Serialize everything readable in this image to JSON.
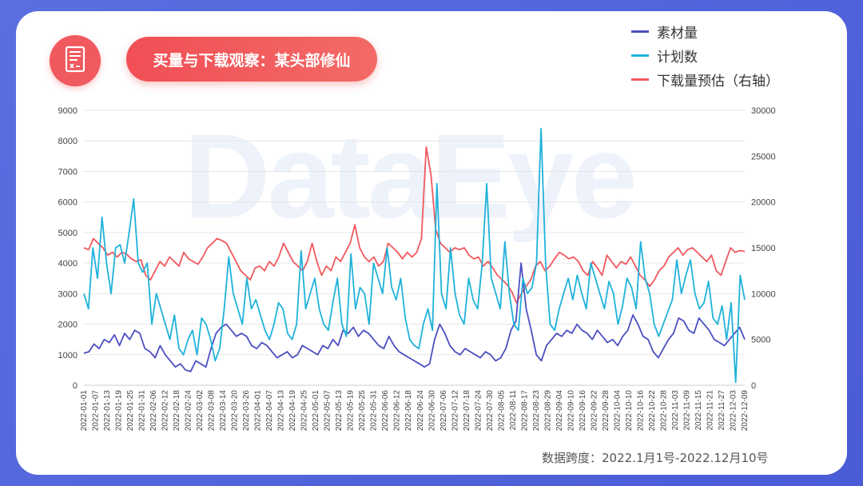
{
  "header": {
    "title": "买量与下载观察：某头部修仙"
  },
  "watermark": "DataEye",
  "footnote": "数据跨度：2022.1月1号-2022.12月10号",
  "colors": {
    "materials": "#4b4fc0",
    "plans": "#1fb2da",
    "downloads": "#f0595e",
    "background": "#5568e0",
    "title_pill": "#f0595e"
  },
  "icons": {
    "logo": "document-icon"
  },
  "chart_data": {
    "type": "line",
    "grid": true,
    "legend_position": "top-right",
    "x_tick_labels": [
      "2022-01-01",
      "2022-01-07",
      "2022-01-13",
      "2022-01-19",
      "2022-01-25",
      "2022-01-31",
      "2022-02-06",
      "2022-02-12",
      "2022-02-18",
      "2022-02-24",
      "2022-03-02",
      "2022-03-08",
      "2022-03-14",
      "2022-03-20",
      "2022-03-26",
      "2022-04-01",
      "2022-04-07",
      "2022-04-13",
      "2022-04-19",
      "2022-04-25",
      "2022-05-01",
      "2022-05-07",
      "2022-05-13",
      "2022-05-19",
      "2022-05-25",
      "2022-05-31",
      "2022-06-06",
      "2022-06-12",
      "2022-06-18",
      "2022-06-24",
      "2022-06-30",
      "2022-07-06",
      "2022-07-12",
      "2022-07-18",
      "2022-07-24",
      "2022-07-30",
      "2022-08-05",
      "2022-08-11",
      "2022-08-17",
      "2022-08-23",
      "2022-08-29",
      "2022-09-04",
      "2022-09-10",
      "2022-09-16",
      "2022-09-22",
      "2022-09-28",
      "2022-10-04",
      "2022-10-10",
      "2022-10-16",
      "2022-10-22",
      "2022-10-28",
      "2022-11-03",
      "2022-11-09",
      "2022-11-15",
      "2022-11-21",
      "2022-11-27",
      "2022-12-03",
      "2022-12-09"
    ],
    "y_left": {
      "ticks": [
        0,
        1000,
        2000,
        3000,
        4000,
        5000,
        6000,
        7000,
        8000,
        9000
      ],
      "range": [
        0,
        9000
      ]
    },
    "y_right": {
      "ticks": [
        0,
        5000,
        10000,
        15000,
        20000,
        25000,
        30000
      ],
      "range": [
        0,
        30000
      ]
    },
    "series": [
      {
        "name": "素材量",
        "axis": "left",
        "color": "#4b4fc0",
        "values": [
          1050,
          1100,
          1350,
          1200,
          1500,
          1400,
          1650,
          1300,
          1700,
          1500,
          1800,
          1700,
          1200,
          1100,
          900,
          1300,
          1000,
          800,
          600,
          700,
          500,
          450,
          800,
          700,
          600,
          1200,
          1700,
          1900,
          2000,
          1800,
          1600,
          1700,
          1600,
          1300,
          1200,
          1400,
          1300,
          1100,
          900,
          1000,
          1100,
          900,
          1000,
          1300,
          1200,
          1100,
          1000,
          1300,
          1200,
          1500,
          1300,
          1800,
          1700,
          1900,
          1600,
          1800,
          1700,
          1500,
          1300,
          1200,
          1600,
          1300,
          1100,
          1000,
          900,
          800,
          700,
          600,
          700,
          1500,
          2000,
          1700,
          1300,
          1100,
          1000,
          1200,
          1100,
          1000,
          900,
          1100,
          1000,
          800,
          900,
          1200,
          1800,
          2100,
          4000,
          2500,
          1800,
          1000,
          800,
          1300,
          1500,
          1700,
          1600,
          1800,
          1700,
          2000,
          1800,
          1700,
          1500,
          1800,
          1600,
          1400,
          1500,
          1300,
          1600,
          1800,
          2300,
          2000,
          1600,
          1500,
          1100,
          900,
          1200,
          1500,
          1700,
          2200,
          2100,
          1800,
          1700,
          2200,
          2000,
          1800,
          1500,
          1400,
          1300,
          1500,
          1700,
          1900,
          1500
        ]
      },
      {
        "name": "计划数",
        "axis": "left",
        "color": "#1fb2da",
        "values": [
          3000,
          2500,
          4500,
          3500,
          5500,
          4000,
          3000,
          4500,
          4600,
          4000,
          5000,
          6100,
          4000,
          3700,
          4000,
          2000,
          3000,
          2500,
          2000,
          1500,
          2300,
          1200,
          1000,
          1500,
          1800,
          1000,
          2200,
          2000,
          1500,
          800,
          1200,
          2500,
          4200,
          3000,
          2500,
          2000,
          3500,
          2500,
          2800,
          2300,
          1800,
          1500,
          2000,
          2700,
          2500,
          1700,
          1500,
          2000,
          4400,
          2500,
          3000,
          3500,
          2500,
          2000,
          1800,
          2700,
          3500,
          2000,
          1600,
          4300,
          2500,
          3200,
          3000,
          2000,
          4000,
          3500,
          3000,
          4500,
          3200,
          2800,
          3500,
          2200,
          1500,
          1300,
          1200,
          2000,
          2500,
          1800,
          6600,
          3000,
          2500,
          4500,
          3000,
          2300,
          2000,
          3500,
          2800,
          2500,
          4000,
          6600,
          3500,
          3000,
          2500,
          4700,
          3000,
          2000,
          1800,
          3500,
          3000,
          3200,
          4000,
          8400,
          4000,
          2000,
          1800,
          2500,
          3000,
          3500,
          2800,
          3600,
          3000,
          2500,
          4000,
          3500,
          3000,
          2500,
          3400,
          3000,
          2000,
          2600,
          3500,
          3200,
          2500,
          4700,
          3500,
          3000,
          2000,
          1600,
          2000,
          2400,
          2800,
          4100,
          3000,
          3600,
          4100,
          3000,
          2500,
          2700,
          3400,
          2200,
          2000,
          2600,
          1500,
          2700,
          100,
          3600,
          2800
        ]
      },
      {
        "name": "下载量预估（右轴）",
        "axis": "right",
        "color": "#f0595e",
        "values": [
          15000,
          14800,
          16000,
          15500,
          15000,
          14200,
          14500,
          14000,
          14500,
          14300,
          13800,
          13500,
          13700,
          12000,
          11500,
          12500,
          13500,
          13000,
          14000,
          13500,
          13000,
          14500,
          13800,
          13500,
          13200,
          14000,
          15000,
          15500,
          16000,
          15800,
          15500,
          14500,
          13500,
          12500,
          12000,
          11500,
          12800,
          13000,
          12500,
          13500,
          13000,
          14000,
          15500,
          14500,
          13500,
          13000,
          12500,
          13500,
          15500,
          13500,
          12000,
          13000,
          12500,
          14000,
          13500,
          14500,
          15500,
          17500,
          15000,
          14000,
          13500,
          14000,
          13000,
          13500,
          15500,
          15000,
          14500,
          13800,
          14500,
          14000,
          14500,
          16000,
          26000,
          23000,
          17000,
          15500,
          15000,
          14500,
          15000,
          14800,
          15000,
          14200,
          13800,
          14000,
          13000,
          13500,
          12800,
          12000,
          11500,
          11000,
          10200,
          9000,
          10000,
          10800,
          11500,
          13000,
          13500,
          12500,
          13000,
          13800,
          14500,
          14200,
          13800,
          14000,
          13500,
          12500,
          12000,
          13500,
          12800,
          12000,
          14200,
          13500,
          12800,
          13500,
          13200,
          14000,
          13000,
          12000,
          11500,
          10800,
          11500,
          12500,
          13000,
          14000,
          14500,
          15000,
          14200,
          14800,
          15000,
          14500,
          14000,
          13500,
          14200,
          12500,
          12000,
          13500,
          15000,
          14500,
          14700,
          14600
        ]
      }
    ]
  }
}
